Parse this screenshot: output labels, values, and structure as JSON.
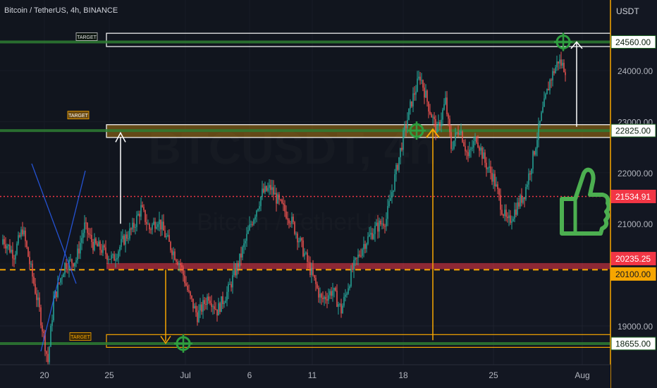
{
  "header": {
    "symbol_title": "Bitcoin / TetherUS, 4h, BINANCE"
  },
  "price_scale": {
    "unit": "USDT",
    "ticks": [
      24000,
      23000,
      22000,
      21000,
      19000
    ]
  },
  "watermark": {
    "ticker": "BTCUSDT, 4h",
    "name": "Bitcoin / TetherUS"
  },
  "chart_data": {
    "type": "candlestick",
    "title": "Bitcoin / TetherUS, 4h, BINANCE",
    "ylabel": "USDT",
    "ylim": [
      18340,
      25580
    ],
    "x_tick_labels": [
      "20",
      "25",
      "Jul",
      "6",
      "11",
      "18",
      "25",
      "Aug"
    ],
    "price_labels": [
      {
        "value": "24560.00",
        "color": "#1b5e20",
        "kind": "target"
      },
      {
        "value": "22825.00",
        "color": "#1b5e20",
        "kind": "target"
      },
      {
        "value": "21534.91",
        "color": "#f23645",
        "kind": "last-price"
      },
      {
        "value": "20235.25",
        "color": "#f23645",
        "kind": "level"
      },
      {
        "value": "20100.00",
        "color": "#f7a600",
        "kind": "level"
      },
      {
        "value": "18655.00",
        "color": "#1b5e20",
        "kind": "target"
      }
    ],
    "target_labels": [
      "TARGET",
      "TARGET",
      "TARGET"
    ],
    "horizontal_levels": [
      {
        "price": 24560,
        "style": "solid",
        "color": "#2e7d32"
      },
      {
        "price": 22825,
        "style": "solid",
        "color": "#2e7d32"
      },
      {
        "price": 21534.91,
        "style": "dotted",
        "color": "#f23645"
      },
      {
        "price": 20100,
        "style": "dashed",
        "color": "#f7a600"
      },
      {
        "price": 18655,
        "style": "solid",
        "color": "#2e7d32"
      }
    ],
    "zones": [
      {
        "name": "upper-target-zone",
        "low": 24470,
        "high": 24730,
        "color": "#ffffff"
      },
      {
        "name": "middle-target-zone",
        "low": 22690,
        "high": 22940,
        "color": "#c88a10"
      },
      {
        "name": "resistance-zone",
        "low": 20110,
        "high": 20230,
        "color": "#f23645"
      },
      {
        "name": "lower-target-zone",
        "low": 18580,
        "high": 18830,
        "color": "#f7a600"
      }
    ],
    "candles": {
      "start_price": 20600,
      "close_path": [
        [
          0,
          20700
        ],
        [
          8,
          20400
        ],
        [
          14,
          20900
        ],
        [
          20,
          20100
        ],
        [
          26,
          19300
        ],
        [
          32,
          18300
        ],
        [
          36,
          19500
        ],
        [
          44,
          20200
        ],
        [
          52,
          20300
        ],
        [
          58,
          20950
        ],
        [
          64,
          20600
        ],
        [
          70,
          20500
        ],
        [
          78,
          20300
        ],
        [
          86,
          20700
        ],
        [
          92,
          20900
        ],
        [
          98,
          21300
        ],
        [
          104,
          20900
        ],
        [
          110,
          21100
        ],
        [
          118,
          20600
        ],
        [
          126,
          20200
        ],
        [
          132,
          19600
        ],
        [
          138,
          19200
        ],
        [
          146,
          19600
        ],
        [
          152,
          19300
        ],
        [
          160,
          19700
        ],
        [
          168,
          20300
        ],
        [
          176,
          21000
        ],
        [
          184,
          21600
        ],
        [
          190,
          21700
        ],
        [
          196,
          21400
        ],
        [
          204,
          21100
        ],
        [
          210,
          20700
        ],
        [
          218,
          20100
        ],
        [
          226,
          19500
        ],
        [
          234,
          19700
        ],
        [
          240,
          19300
        ],
        [
          248,
          20100
        ],
        [
          256,
          20600
        ],
        [
          264,
          20900
        ],
        [
          272,
          21100
        ],
        [
          278,
          21900
        ],
        [
          284,
          22700
        ],
        [
          290,
          23400
        ],
        [
          296,
          23900
        ],
        [
          302,
          23300
        ],
        [
          308,
          22800
        ],
        [
          314,
          23400
        ],
        [
          318,
          22500
        ],
        [
          324,
          22900
        ],
        [
          330,
          22300
        ],
        [
          336,
          22700
        ],
        [
          342,
          22200
        ],
        [
          348,
          21900
        ],
        [
          354,
          21300
        ],
        [
          358,
          21000
        ],
        [
          364,
          21300
        ],
        [
          370,
          21600
        ],
        [
          376,
          22300
        ],
        [
          382,
          23100
        ],
        [
          388,
          23800
        ],
        [
          394,
          24200
        ],
        [
          400,
          24000
        ]
      ]
    }
  }
}
